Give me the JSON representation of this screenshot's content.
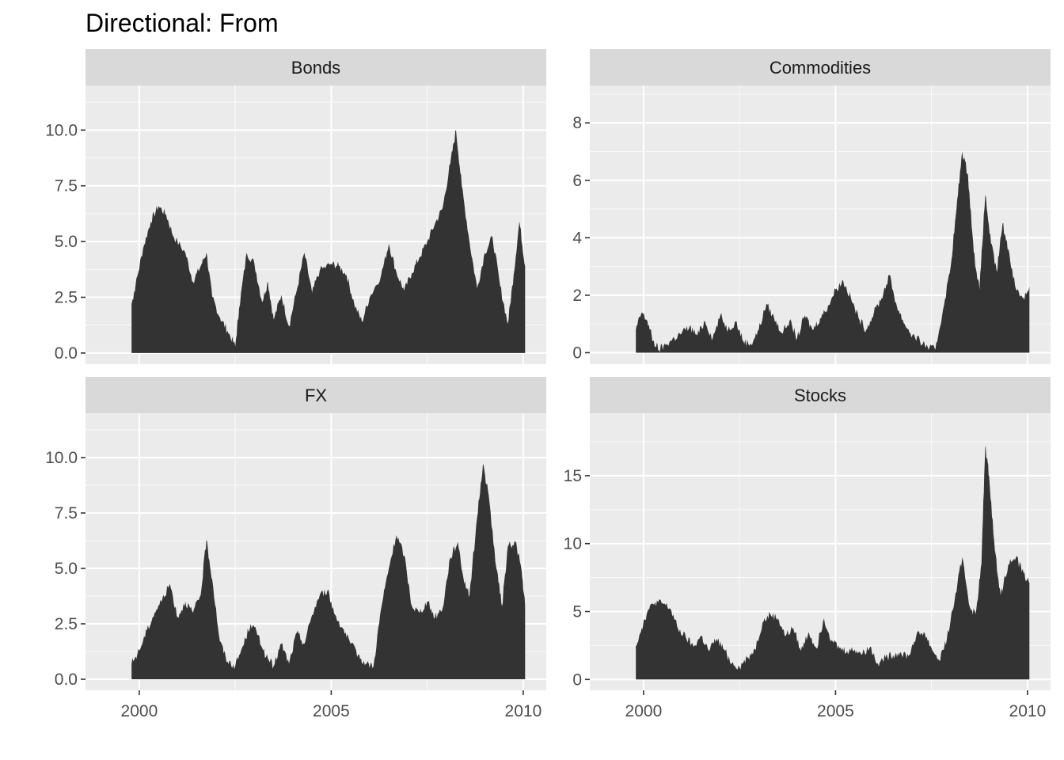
{
  "title": "Directional: From",
  "chart_data": [
    {
      "type": "area",
      "facet": "Bonds",
      "xlim": [
        1998.6,
        2010.6
      ],
      "ylim": [
        -0.5,
        12.0
      ],
      "x_breaks": [
        2000,
        2005,
        2010
      ],
      "x_tick_labels": [
        "2000",
        "2005",
        "2010"
      ],
      "y_breaks": [
        0,
        2.5,
        5,
        7.5,
        10
      ],
      "y_tick_labels": [
        "0.0",
        "2.5",
        "5.0",
        "7.5",
        "10.0"
      ],
      "x": [
        1999.8,
        1999.9,
        2000.1,
        2000.3,
        2000.5,
        2000.7,
        2000.9,
        2001.2,
        2001.4,
        2001.6,
        2001.75,
        2001.9,
        2002.1,
        2002.3,
        2002.5,
        2002.6,
        2002.8,
        2003.0,
        2003.2,
        2003.35,
        2003.5,
        2003.7,
        2003.9,
        2004.1,
        2004.3,
        2004.5,
        2004.7,
        2005.0,
        2005.2,
        2005.4,
        2005.6,
        2005.8,
        2006.0,
        2006.3,
        2006.5,
        2006.7,
        2006.9,
        2007.1,
        2007.3,
        2007.5,
        2007.7,
        2007.9,
        2008.1,
        2008.25,
        2008.4,
        2008.6,
        2008.8,
        2009.0,
        2009.2,
        2009.4,
        2009.6,
        2009.75,
        2009.9,
        2010.05
      ],
      "y": [
        2.2,
        3.0,
        4.7,
        5.9,
        6.6,
        6.2,
        5.2,
        4.5,
        3.2,
        3.9,
        4.5,
        2.5,
        1.6,
        1.0,
        0.3,
        2.0,
        4.5,
        4.0,
        2.3,
        3.2,
        1.5,
        2.6,
        1.2,
        2.8,
        4.5,
        2.7,
        3.7,
        4.0,
        3.9,
        3.5,
        2.2,
        1.4,
        2.5,
        3.5,
        4.9,
        3.6,
        2.8,
        3.6,
        4.3,
        5.0,
        5.8,
        6.5,
        8.5,
        10.0,
        7.5,
        5.0,
        2.9,
        4.5,
        5.2,
        3.0,
        1.3,
        3.5,
        5.9,
        3.9
      ]
    },
    {
      "type": "area",
      "facet": "Commodities",
      "xlim": [
        1998.6,
        2010.6
      ],
      "ylim": [
        -0.4,
        9.3
      ],
      "x_breaks": [
        2000,
        2005,
        2010
      ],
      "x_tick_labels": [
        "2000",
        "2005",
        "2010"
      ],
      "y_breaks": [
        0,
        2,
        4,
        6,
        8
      ],
      "y_tick_labels": [
        "0",
        "2",
        "4",
        "6",
        "8"
      ],
      "x": [
        1999.8,
        1999.95,
        2000.1,
        2000.25,
        2000.4,
        2000.6,
        2000.8,
        2001.0,
        2001.2,
        2001.4,
        2001.6,
        2001.8,
        2002.0,
        2002.2,
        2002.4,
        2002.6,
        2002.8,
        2003.0,
        2003.2,
        2003.4,
        2003.6,
        2003.8,
        2004.0,
        2004.2,
        2004.4,
        2004.6,
        2004.8,
        2005.0,
        2005.2,
        2005.4,
        2005.6,
        2005.8,
        2006.0,
        2006.2,
        2006.4,
        2006.6,
        2006.8,
        2007.0,
        2007.2,
        2007.4,
        2007.6,
        2007.8,
        2008.0,
        2008.15,
        2008.3,
        2008.45,
        2008.6,
        2008.75,
        2008.9,
        2009.05,
        2009.2,
        2009.35,
        2009.5,
        2009.7,
        2009.9,
        2010.05
      ],
      "y": [
        0.8,
        1.4,
        1.1,
        0.4,
        0.1,
        0.3,
        0.5,
        0.7,
        0.9,
        0.6,
        1.1,
        0.5,
        1.3,
        0.8,
        1.1,
        0.4,
        0.3,
        0.8,
        1.7,
        1.2,
        0.7,
        1.1,
        0.5,
        1.3,
        0.8,
        1.2,
        1.6,
        2.2,
        2.5,
        1.9,
        1.2,
        0.8,
        1.4,
        1.9,
        2.7,
        1.6,
        1.0,
        0.6,
        0.4,
        0.2,
        0.1,
        1.5,
        3.0,
        5.0,
        7.0,
        6.2,
        3.5,
        2.2,
        5.5,
        3.8,
        2.8,
        4.5,
        3.6,
        2.2,
        1.9,
        2.3
      ]
    },
    {
      "type": "area",
      "facet": "FX",
      "xlim": [
        1998.6,
        2010.6
      ],
      "ylim": [
        -0.5,
        12.0
      ],
      "x_breaks": [
        2000,
        2005,
        2010
      ],
      "x_tick_labels": [
        "2000",
        "2005",
        "2010"
      ],
      "y_breaks": [
        0,
        2.5,
        5,
        7.5,
        10
      ],
      "y_tick_labels": [
        "0.0",
        "2.5",
        "5.0",
        "7.5",
        "10.0"
      ],
      "x": [
        1999.8,
        2000.0,
        2000.2,
        2000.4,
        2000.6,
        2000.8,
        2001.0,
        2001.2,
        2001.4,
        2001.6,
        2001.75,
        2001.9,
        2002.1,
        2002.3,
        2002.5,
        2002.7,
        2002.9,
        2003.1,
        2003.3,
        2003.5,
        2003.7,
        2003.9,
        2004.1,
        2004.3,
        2004.5,
        2004.7,
        2004.9,
        2005.1,
        2005.3,
        2005.5,
        2005.7,
        2005.9,
        2006.1,
        2006.3,
        2006.5,
        2006.7,
        2006.9,
        2007.1,
        2007.3,
        2007.5,
        2007.7,
        2007.9,
        2008.1,
        2008.3,
        2008.45,
        2008.6,
        2008.8,
        2008.95,
        2009.1,
        2009.3,
        2009.45,
        2009.6,
        2009.8,
        2009.95,
        2010.05
      ],
      "y": [
        0.7,
        1.3,
        2.2,
        3.0,
        3.6,
        4.3,
        2.8,
        3.5,
        3.0,
        3.8,
        6.3,
        4.5,
        1.7,
        0.8,
        0.6,
        1.5,
        2.5,
        2.0,
        1.0,
        0.6,
        1.6,
        0.7,
        2.1,
        1.6,
        2.9,
        3.8,
        4.0,
        2.9,
        2.3,
        1.6,
        1.1,
        0.7,
        0.6,
        3.2,
        5.0,
        6.5,
        5.6,
        3.3,
        3.0,
        3.5,
        2.8,
        3.2,
        5.5,
        6.2,
        4.5,
        3.8,
        7.3,
        9.7,
        8.3,
        5.0,
        3.3,
        6.0,
        6.2,
        5.0,
        3.3
      ]
    },
    {
      "type": "area",
      "facet": "Stocks",
      "xlim": [
        1998.6,
        2010.6
      ],
      "ylim": [
        -0.8,
        19.6
      ],
      "x_breaks": [
        2000,
        2005,
        2010
      ],
      "x_tick_labels": [
        "2000",
        "2005",
        "2010"
      ],
      "y_breaks": [
        0,
        5,
        10,
        15
      ],
      "y_tick_labels": [
        "0",
        "5",
        "10",
        "15"
      ],
      "x": [
        1999.8,
        1999.95,
        2000.1,
        2000.3,
        2000.5,
        2000.7,
        2000.9,
        2001.1,
        2001.3,
        2001.5,
        2001.7,
        2001.9,
        2002.1,
        2002.3,
        2002.5,
        2002.7,
        2002.9,
        2003.1,
        2003.3,
        2003.5,
        2003.7,
        2003.9,
        2004.1,
        2004.3,
        2004.5,
        2004.7,
        2004.9,
        2005.1,
        2005.3,
        2005.5,
        2005.7,
        2005.9,
        2006.1,
        2006.3,
        2006.5,
        2006.7,
        2006.9,
        2007.1,
        2007.3,
        2007.5,
        2007.7,
        2007.9,
        2008.1,
        2008.3,
        2008.5,
        2008.65,
        2008.8,
        2008.9,
        2009.0,
        2009.15,
        2009.3,
        2009.5,
        2009.7,
        2009.9,
        2010.05
      ],
      "y": [
        2.5,
        3.8,
        5.0,
        5.7,
        5.6,
        5.2,
        3.7,
        3.1,
        2.4,
        3.2,
        2.1,
        3.0,
        2.2,
        1.2,
        0.9,
        1.6,
        2.2,
        4.2,
        4.8,
        4.5,
        3.2,
        3.8,
        2.1,
        3.5,
        2.3,
        4.5,
        2.9,
        2.3,
        2.1,
        2.2,
        1.9,
        2.4,
        1.2,
        1.6,
        1.8,
        2.0,
        1.7,
        3.2,
        3.5,
        2.3,
        1.4,
        3.0,
        5.8,
        9.0,
        5.3,
        4.8,
        8.5,
        17.2,
        15.0,
        9.5,
        6.2,
        8.5,
        9.0,
        7.8,
        7.1
      ]
    }
  ]
}
